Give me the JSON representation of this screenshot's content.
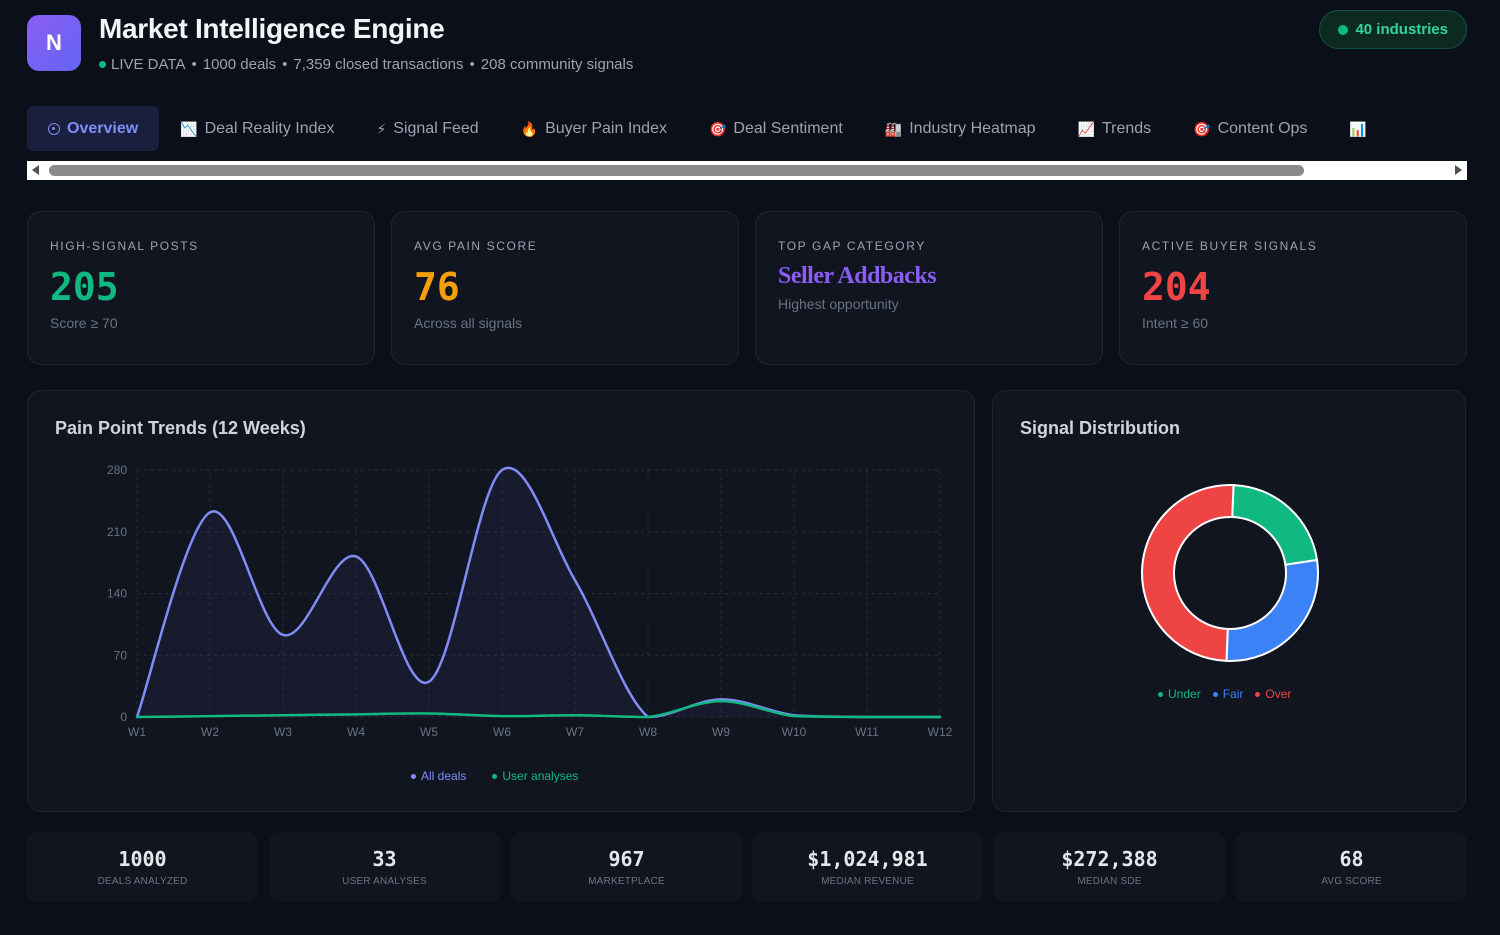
{
  "header": {
    "logo_letter": "N",
    "title": "Market Intelligence Engine",
    "live_label": "LIVE DATA",
    "deals": "1000 deals",
    "transactions": "7,359 closed transactions",
    "signals": "208 community signals",
    "industries_badge": "40 industries"
  },
  "tabs": [
    {
      "label": "Overview",
      "icon": "target-icon",
      "glyph": ""
    },
    {
      "label": "Deal Reality Index",
      "icon": "chart-down-icon",
      "glyph": "📉"
    },
    {
      "label": "Signal Feed",
      "icon": "lightning-icon",
      "glyph": "⚡"
    },
    {
      "label": "Buyer Pain Index",
      "icon": "fire-icon",
      "glyph": "🔥"
    },
    {
      "label": "Deal Sentiment",
      "icon": "dart-icon",
      "glyph": "🎯"
    },
    {
      "label": "Industry Heatmap",
      "icon": "factory-icon",
      "glyph": "🏭"
    },
    {
      "label": "Trends",
      "icon": "chart-up-icon",
      "glyph": "📈"
    },
    {
      "label": "Content Ops",
      "icon": "dart-icon",
      "glyph": "🎯"
    },
    {
      "label": "",
      "icon": "bar-chart-icon",
      "glyph": "📊"
    }
  ],
  "stats": [
    {
      "label": "HIGH-SIGNAL POSTS",
      "value": "205",
      "sub": "Score ≥ 70"
    },
    {
      "label": "AVG PAIN SCORE",
      "value": "76",
      "sub": "Across all signals"
    },
    {
      "label": "TOP GAP CATEGORY",
      "value": "Seller Addbacks",
      "sub": "Highest opportunity"
    },
    {
      "label": "ACTIVE BUYER SIGNALS",
      "value": "204",
      "sub": "Intent ≥ 60"
    }
  ],
  "colors": {
    "accent": "#818cf8",
    "green": "#10b981",
    "amber": "#f59e0b",
    "red": "#ef4444",
    "blue": "#3b82f6",
    "purple": "#8b5cf6"
  },
  "chart_data": [
    {
      "type": "line",
      "title": "Pain Point Trends (12 Weeks)",
      "categories": [
        "W1",
        "W2",
        "W3",
        "W4",
        "W5",
        "W6",
        "W7",
        "W8",
        "W9",
        "W10",
        "W11",
        "W12"
      ],
      "y_ticks": [
        0,
        70,
        140,
        210,
        280
      ],
      "ylim": [
        0,
        280
      ],
      "grid": true,
      "legend": "bottom",
      "series": [
        {
          "name": "All deals",
          "color": "#818cf8",
          "values": [
            0,
            232,
            93,
            182,
            40,
            280,
            155,
            0,
            20,
            2,
            0,
            0
          ]
        },
        {
          "name": "User analyses",
          "color": "#10b981",
          "values": [
            0,
            1,
            2,
            3,
            4,
            1,
            2,
            0,
            18,
            1,
            0,
            0
          ]
        }
      ]
    },
    {
      "type": "pie",
      "title": "Signal Distribution",
      "legend": "bottom",
      "labels": [
        "Under",
        "Fair",
        "Over"
      ],
      "values": [
        22,
        28,
        50
      ],
      "colors": [
        "#10b981",
        "#3b82f6",
        "#ef4444"
      ]
    }
  ],
  "summary": [
    {
      "value": "1000",
      "label": "DEALS ANALYZED"
    },
    {
      "value": "33",
      "label": "USER ANALYSES"
    },
    {
      "value": "967",
      "label": "MARKETPLACE"
    },
    {
      "value": "$1,024,981",
      "label": "MEDIAN REVENUE"
    },
    {
      "value": "$272,388",
      "label": "MEDIAN SDE"
    },
    {
      "value": "68",
      "label": "AVG SCORE"
    }
  ]
}
